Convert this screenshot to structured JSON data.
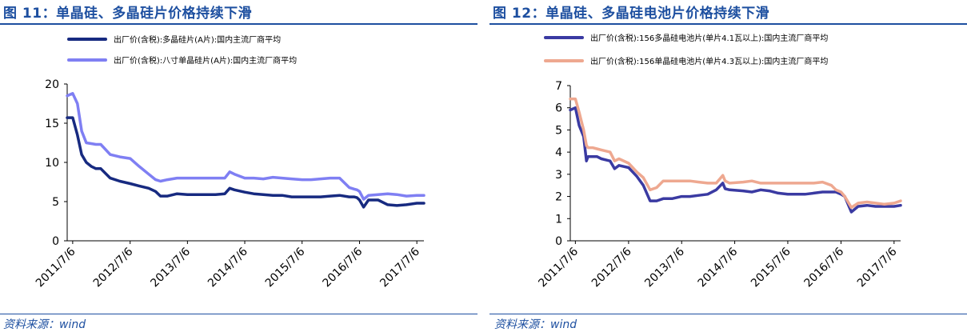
{
  "charts": [
    {
      "figure_title": "图 11：单晶硅、多晶硅片价格持续下滑",
      "source": "资料来源：wind",
      "chart_data": {
        "type": "line",
        "title": "",
        "xlabel": "",
        "ylabel": "",
        "ylim": [
          0,
          20
        ],
        "yticks": [
          0,
          5,
          10,
          15,
          20
        ],
        "x_range": [
          "2011/6/1",
          "2017/8/20"
        ],
        "xticks": [
          "2011/7/6",
          "2012/7/6",
          "2013/7/6",
          "2014/7/6",
          "2015/7/6",
          "2016/7/6",
          "2017/7/6"
        ],
        "legend_position": "top-left",
        "grid": false,
        "series": [
          {
            "name": "出厂价(含税):多晶硅片(A片):国内主流厂商平均",
            "color": "#172a80",
            "x": [
              "2011/6/1",
              "2011/7/6",
              "2011/8/5",
              "2011/9/1",
              "2011/10/1",
              "2011/11/1",
              "2011/12/1",
              "2012/1/1",
              "2012/3/1",
              "2012/5/1",
              "2012/7/6",
              "2012/9/1",
              "2012/11/1",
              "2012/12/15",
              "2013/1/15",
              "2013/3/1",
              "2013/5/1",
              "2013/7/6",
              "2013/9/1",
              "2013/11/1",
              "2014/1/1",
              "2014/3/1",
              "2014/4/1",
              "2014/5/1",
              "2014/7/6",
              "2014/9/1",
              "2014/11/1",
              "2015/1/1",
              "2015/3/1",
              "2015/5/1",
              "2015/7/6",
              "2015/9/1",
              "2015/11/1",
              "2016/1/1",
              "2016/3/1",
              "2016/5/1",
              "2016/6/1",
              "2016/6/20",
              "2016/7/6",
              "2016/8/1",
              "2016/9/1",
              "2016/11/1",
              "2017/1/1",
              "2017/3/1",
              "2017/5/1",
              "2017/7/6",
              "2017/8/20"
            ],
            "values": [
              15.7,
              15.7,
              13.5,
              11.0,
              10.0,
              9.5,
              9.2,
              9.2,
              8.0,
              7.6,
              7.3,
              7.0,
              6.7,
              6.3,
              5.7,
              5.7,
              6.0,
              5.9,
              5.9,
              5.9,
              5.9,
              6.0,
              6.7,
              6.5,
              6.2,
              6.0,
              5.9,
              5.8,
              5.8,
              5.6,
              5.6,
              5.6,
              5.6,
              5.7,
              5.8,
              5.6,
              5.6,
              5.5,
              5.2,
              4.3,
              5.2,
              5.2,
              4.6,
              4.5,
              4.6,
              4.8,
              4.8
            ]
          },
          {
            "name": "出厂价(含税):八寸单晶硅片(A片):国内主流厂商平均",
            "color": "#7f7ff3",
            "x": [
              "2011/6/1",
              "2011/7/6",
              "2011/8/5",
              "2011/9/1",
              "2011/10/1",
              "2011/11/1",
              "2011/12/1",
              "2012/1/1",
              "2012/3/1",
              "2012/5/1",
              "2012/7/6",
              "2012/9/1",
              "2012/11/1",
              "2012/12/15",
              "2013/1/15",
              "2013/3/1",
              "2013/5/1",
              "2013/7/6",
              "2013/9/1",
              "2013/11/1",
              "2014/1/1",
              "2014/3/1",
              "2014/4/1",
              "2014/5/1",
              "2014/7/6",
              "2014/9/1",
              "2014/11/1",
              "2015/1/1",
              "2015/3/1",
              "2015/5/1",
              "2015/7/6",
              "2015/9/1",
              "2015/11/1",
              "2016/1/1",
              "2016/3/1",
              "2016/5/1",
              "2016/6/1",
              "2016/6/20",
              "2016/7/6",
              "2016/8/1",
              "2016/9/1",
              "2016/11/1",
              "2017/1/1",
              "2017/3/1",
              "2017/5/1",
              "2017/7/6",
              "2017/8/20"
            ],
            "values": [
              18.5,
              18.8,
              17.5,
              14.0,
              12.5,
              12.4,
              12.3,
              12.3,
              11.0,
              10.7,
              10.5,
              9.5,
              8.5,
              7.8,
              7.6,
              7.8,
              8.0,
              8.0,
              8.0,
              8.0,
              8.0,
              8.0,
              8.8,
              8.5,
              8.0,
              8.0,
              7.9,
              8.1,
              8.0,
              7.9,
              7.8,
              7.8,
              7.9,
              8.0,
              8.0,
              6.8,
              6.6,
              6.5,
              6.3,
              5.3,
              5.8,
              5.9,
              6.0,
              5.9,
              5.7,
              5.8,
              5.8
            ]
          }
        ]
      }
    },
    {
      "figure_title": "图 12：单晶硅、多晶硅电池片价格持续下滑",
      "source": "资料来源：wind",
      "chart_data": {
        "type": "line",
        "title": "",
        "xlabel": "",
        "ylabel": "",
        "ylim": [
          0,
          7
        ],
        "yticks": [
          0,
          1,
          2,
          3,
          4,
          5,
          6,
          7
        ],
        "x_range": [
          "2011/6/1",
          "2017/8/20"
        ],
        "xticks": [
          "2011/7/6",
          "2012/7/6",
          "2013/7/6",
          "2014/7/6",
          "2015/7/6",
          "2016/7/6",
          "2017/7/6"
        ],
        "legend_position": "top-left",
        "grid": false,
        "series": [
          {
            "name": "出厂价(含税):156多晶硅电池片(单片4.1瓦以上):国内主流厂商平均",
            "color": "#3a3aa2",
            "x": [
              "2011/6/1",
              "2011/7/6",
              "2011/8/1",
              "2011/9/1",
              "2011/9/20",
              "2011/10/1",
              "2011/11/1",
              "2011/12/1",
              "2012/1/1",
              "2012/3/1",
              "2012/4/1",
              "2012/5/1",
              "2012/7/6",
              "2012/9/1",
              "2012/10/15",
              "2012/12/1",
              "2013/1/15",
              "2013/3/1",
              "2013/5/1",
              "2013/7/6",
              "2013/9/1",
              "2013/11/1",
              "2014/1/1",
              "2014/3/1",
              "2014/4/15",
              "2014/5/1",
              "2014/6/1",
              "2014/9/1",
              "2014/11/1",
              "2015/1/1",
              "2015/3/1",
              "2015/5/1",
              "2015/7/6",
              "2015/9/1",
              "2015/11/1",
              "2016/1/1",
              "2016/3/1",
              "2016/5/1",
              "2016/6/1",
              "2016/7/6",
              "2016/8/1",
              "2016/9/15",
              "2016/11/1",
              "2017/1/1",
              "2017/3/1",
              "2017/5/1",
              "2017/7/6",
              "2017/8/20"
            ],
            "values": [
              5.9,
              6.0,
              5.2,
              4.7,
              3.6,
              3.8,
              3.8,
              3.8,
              3.7,
              3.6,
              3.25,
              3.4,
              3.3,
              2.9,
              2.5,
              1.8,
              1.8,
              1.9,
              1.9,
              2.0,
              2.0,
              2.05,
              2.1,
              2.3,
              2.6,
              2.35,
              2.3,
              2.25,
              2.2,
              2.3,
              2.25,
              2.15,
              2.1,
              2.1,
              2.1,
              2.15,
              2.2,
              2.2,
              2.2,
              2.1,
              2.0,
              1.3,
              1.55,
              1.6,
              1.55,
              1.55,
              1.55,
              1.6
            ]
          },
          {
            "name": "出厂价(含税):156单晶硅电池片(单片4.3瓦以上):国内主流厂商平均",
            "color": "#eea890",
            "x": [
              "2011/6/1",
              "2011/7/6",
              "2011/8/1",
              "2011/9/1",
              "2011/9/20",
              "2011/10/1",
              "2011/11/1",
              "2011/12/1",
              "2012/1/1",
              "2012/3/1",
              "2012/4/1",
              "2012/5/1",
              "2012/7/6",
              "2012/9/1",
              "2012/10/15",
              "2012/12/1",
              "2013/1/15",
              "2013/3/1",
              "2013/5/1",
              "2013/7/6",
              "2013/9/1",
              "2013/11/1",
              "2014/1/1",
              "2014/3/1",
              "2014/4/15",
              "2014/5/1",
              "2014/6/1",
              "2014/9/1",
              "2014/11/1",
              "2015/1/1",
              "2015/3/1",
              "2015/5/1",
              "2015/7/6",
              "2015/9/1",
              "2015/11/1",
              "2016/1/1",
              "2016/3/1",
              "2016/5/1",
              "2016/6/1",
              "2016/7/6",
              "2016/8/1",
              "2016/9/15",
              "2016/11/1",
              "2017/1/1",
              "2017/3/1",
              "2017/5/1",
              "2017/7/6",
              "2017/8/20"
            ],
            "values": [
              6.4,
              6.4,
              5.8,
              5.0,
              4.3,
              4.2,
              4.2,
              4.15,
              4.1,
              4.0,
              3.6,
              3.7,
              3.5,
              3.1,
              2.85,
              2.3,
              2.4,
              2.7,
              2.7,
              2.7,
              2.7,
              2.65,
              2.6,
              2.6,
              2.95,
              2.7,
              2.6,
              2.65,
              2.7,
              2.6,
              2.6,
              2.6,
              2.6,
              2.6,
              2.6,
              2.6,
              2.65,
              2.5,
              2.3,
              2.2,
              2.0,
              1.5,
              1.7,
              1.75,
              1.7,
              1.65,
              1.7,
              1.8
            ]
          }
        ]
      }
    }
  ]
}
